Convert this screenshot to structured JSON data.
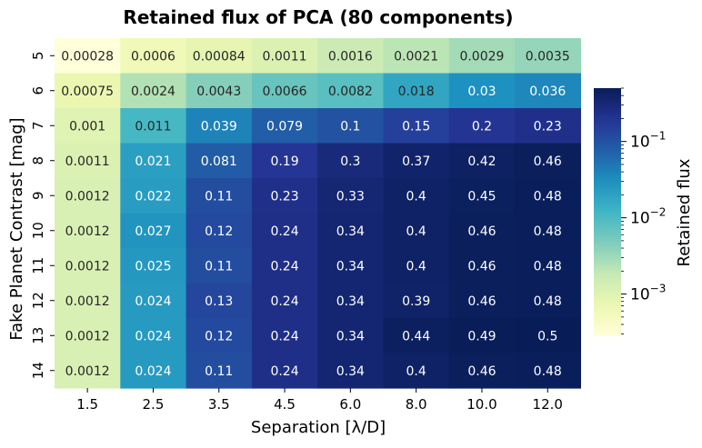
{
  "chart_data": {
    "type": "heatmap",
    "title": "Retained flux of PCA (80 components)",
    "xlabel": "Separation [λ/D]",
    "ylabel": "Fake Planet Contrast [mag]",
    "x_categories": [
      "1.5",
      "2.5",
      "3.5",
      "4.5",
      "6.0",
      "8.0",
      "10.0",
      "12.0"
    ],
    "y_categories": [
      "5",
      "6",
      "7",
      "8",
      "9",
      "10",
      "11",
      "12",
      "13",
      "14"
    ],
    "values": [
      [
        0.00028,
        0.0006,
        0.00084,
        0.0011,
        0.0016,
        0.0021,
        0.0029,
        0.0035
      ],
      [
        0.00075,
        0.0024,
        0.0043,
        0.0066,
        0.0082,
        0.018,
        0.03,
        0.036
      ],
      [
        0.001,
        0.011,
        0.039,
        0.079,
        0.1,
        0.15,
        0.2,
        0.23
      ],
      [
        0.0011,
        0.021,
        0.081,
        0.19,
        0.3,
        0.37,
        0.42,
        0.46
      ],
      [
        0.0012,
        0.022,
        0.11,
        0.23,
        0.33,
        0.4,
        0.45,
        0.48
      ],
      [
        0.0012,
        0.027,
        0.12,
        0.24,
        0.34,
        0.4,
        0.46,
        0.48
      ],
      [
        0.0012,
        0.025,
        0.11,
        0.24,
        0.34,
        0.4,
        0.46,
        0.48
      ],
      [
        0.0012,
        0.024,
        0.13,
        0.24,
        0.34,
        0.39,
        0.46,
        0.48
      ],
      [
        0.0012,
        0.024,
        0.12,
        0.24,
        0.34,
        0.44,
        0.49,
        0.5
      ],
      [
        0.0012,
        0.024,
        0.11,
        0.24,
        0.34,
        0.4,
        0.46,
        0.48
      ]
    ],
    "labels": [
      [
        "0.00028",
        "0.0006",
        "0.00084",
        "0.0011",
        "0.0016",
        "0.0021",
        "0.0029",
        "0.0035"
      ],
      [
        "0.00075",
        "0.0024",
        "0.0043",
        "0.0066",
        "0.0082",
        "0.018",
        "0.03",
        "0.036"
      ],
      [
        "0.001",
        "0.011",
        "0.039",
        "0.079",
        "0.1",
        "0.15",
        "0.2",
        "0.23"
      ],
      [
        "0.0011",
        "0.021",
        "0.081",
        "0.19",
        "0.3",
        "0.37",
        "0.42",
        "0.46"
      ],
      [
        "0.0012",
        "0.022",
        "0.11",
        "0.23",
        "0.33",
        "0.4",
        "0.45",
        "0.48"
      ],
      [
        "0.0012",
        "0.027",
        "0.12",
        "0.24",
        "0.34",
        "0.4",
        "0.46",
        "0.48"
      ],
      [
        "0.0012",
        "0.025",
        "0.11",
        "0.24",
        "0.34",
        "0.4",
        "0.46",
        "0.48"
      ],
      [
        "0.0012",
        "0.024",
        "0.13",
        "0.24",
        "0.34",
        "0.39",
        "0.46",
        "0.48"
      ],
      [
        "0.0012",
        "0.024",
        "0.12",
        "0.24",
        "0.34",
        "0.44",
        "0.49",
        "0.5"
      ],
      [
        "0.0012",
        "0.024",
        "0.11",
        "0.24",
        "0.34",
        "0.4",
        "0.46",
        "0.48"
      ]
    ],
    "colormap": "YlGnBu",
    "color_scale": "log",
    "color_range": [
      0.00028,
      0.5
    ],
    "colorbar": {
      "label": "Retained flux",
      "ticks": [
        {
          "value": 0.001,
          "base": "10",
          "exp": "−3"
        },
        {
          "value": 0.01,
          "base": "10",
          "exp": "−2"
        },
        {
          "value": 0.1,
          "base": "10",
          "exp": "−1"
        }
      ]
    },
    "grid": false
  }
}
